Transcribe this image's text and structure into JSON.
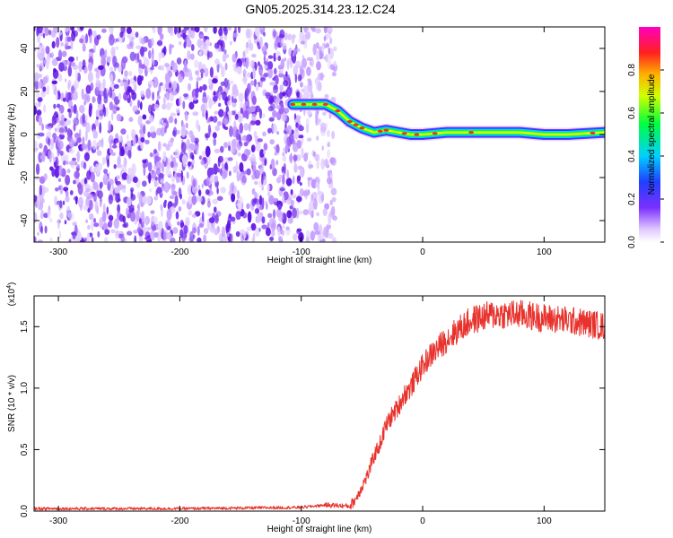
{
  "figure": {
    "title": "GN05.2025.314.23.12.C24"
  },
  "chart_data": [
    {
      "type": "heatmap",
      "title": "GN05.2025.314.23.12.C24",
      "xlabel": "Height of straight line (km)",
      "ylabel": "Frequency (Hz)",
      "xlim": [
        -320,
        150
      ],
      "ylim": [
        -50,
        50
      ],
      "x_ticks": [
        -300,
        -200,
        -100,
        0,
        100
      ],
      "y_ticks": [
        -40,
        -20,
        0,
        20,
        40
      ],
      "colorbar": {
        "label": "Normalized spectral amplitude",
        "range": [
          0,
          1
        ],
        "ticks": [
          "0.0",
          "0.2",
          "0.4",
          "0.6",
          "0.8"
        ],
        "ticks_values": [
          0,
          0.2,
          0.4,
          0.6,
          0.8
        ],
        "colormap": "rainbow (white-violet-blue-cyan-green-yellow-red-magenta)"
      },
      "noise_region_x": [
        -320,
        -72
      ],
      "ridge": {
        "x": [
          -107,
          -80,
          -70,
          -60,
          -50,
          -40,
          -30,
          -20,
          -10,
          0,
          20,
          40,
          60,
          80,
          100,
          120,
          150
        ],
        "y": [
          14,
          14,
          11,
          6,
          3,
          1,
          2,
          1,
          0,
          0,
          1,
          1,
          1,
          1,
          0,
          0,
          1
        ]
      },
      "colors": {
        "noise": "#7a3cf0",
        "ridge_peak": "#ff2a2a"
      }
    },
    {
      "type": "line",
      "xlabel": "Height of straight line (km)",
      "ylabel": "SNR (10 * v/v)",
      "y_multiplier": "(x10⁴)",
      "y_multiplier_base": "(x10",
      "y_multiplier_exp": "4",
      "y_multiplier_close": ")",
      "xlim": [
        -320,
        150
      ],
      "ylim": [
        0,
        1.75
      ],
      "x_ticks": [
        -300,
        -200,
        -100,
        0,
        100
      ],
      "y_ticks": [
        0,
        0.5,
        1.0,
        1.5
      ],
      "y_tick_labels": [
        "0.0",
        "0.5",
        "1.0",
        "1.5"
      ],
      "series": [
        {
          "color": "#e8322d",
          "x": [
            -320,
            -200,
            -100,
            -80,
            -60,
            -55,
            -50,
            -45,
            -40,
            -35,
            -30,
            -25,
            -20,
            -15,
            -10,
            -5,
            0,
            5,
            10,
            15,
            20,
            30,
            40,
            50,
            60,
            80,
            100,
            120,
            140,
            150
          ],
          "y": [
            0.02,
            0.02,
            0.03,
            0.05,
            0.04,
            0.1,
            0.2,
            0.3,
            0.45,
            0.55,
            0.7,
            0.78,
            0.85,
            0.95,
            1.0,
            1.1,
            1.18,
            1.25,
            1.3,
            1.35,
            1.4,
            1.48,
            1.55,
            1.58,
            1.6,
            1.6,
            1.57,
            1.55,
            1.52,
            1.5
          ]
        }
      ]
    }
  ]
}
